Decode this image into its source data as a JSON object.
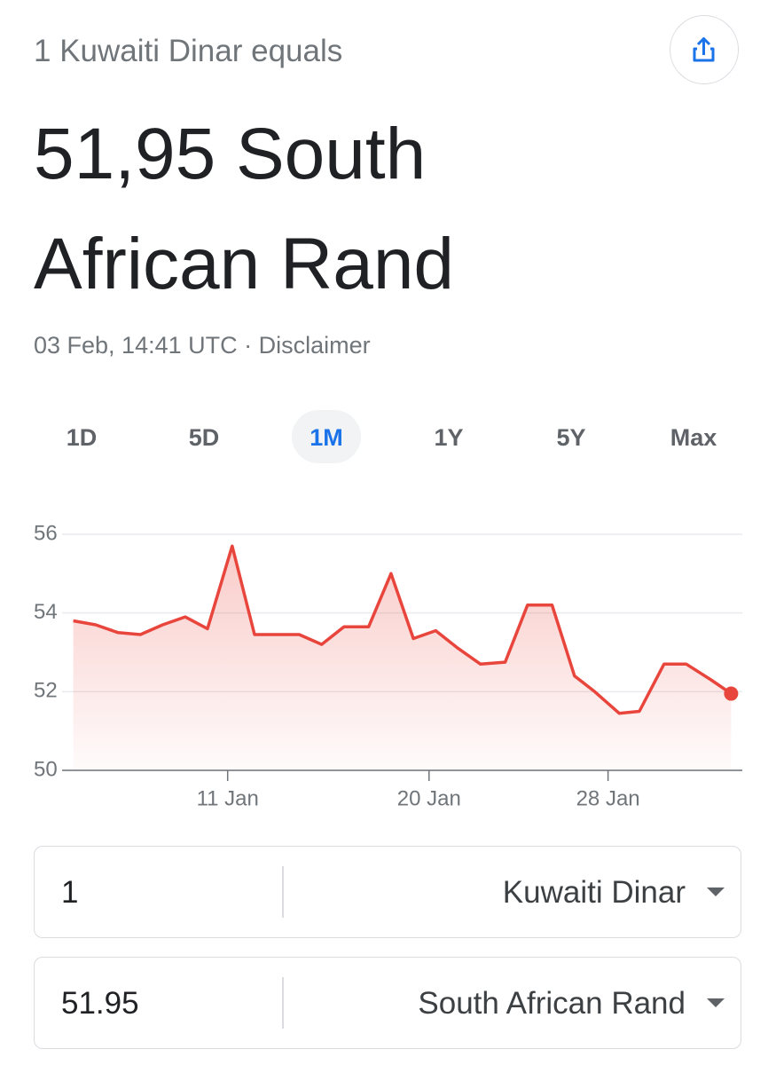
{
  "header": {
    "label": "1 Kuwaiti Dinar equals",
    "result": "51,95 South African Rand",
    "timestamp": "03 Feb, 14:41 UTC",
    "separator": "·",
    "disclaimer": "Disclaimer"
  },
  "tabs": {
    "items": [
      "1D",
      "5D",
      "1M",
      "1Y",
      "5Y",
      "Max"
    ],
    "selected": 2
  },
  "chart_data": {
    "type": "line",
    "x": [
      4.1,
      5.1,
      6.1,
      7.1,
      8.1,
      9.1,
      10.1,
      11.2,
      12.2,
      13.1,
      14.2,
      15.2,
      16.2,
      17.3,
      18.3,
      19.3,
      20.3,
      21.3,
      22.3,
      23.4,
      24.4,
      25.5,
      26.5,
      27.4,
      28.5,
      29.4,
      30.5,
      31.5,
      32.6,
      33.5
    ],
    "values": [
      53.8,
      53.7,
      53.5,
      53.45,
      53.7,
      53.9,
      53.6,
      55.7,
      53.45,
      53.45,
      53.45,
      53.2,
      53.65,
      53.65,
      55.0,
      53.35,
      53.55,
      53.1,
      52.7,
      52.75,
      54.2,
      54.2,
      52.4,
      52.0,
      51.45,
      51.5,
      52.7,
      52.7,
      52.3,
      51.95
    ],
    "color": "#e8453c",
    "area": true,
    "end_marker": true,
    "xlim": [
      3.6,
      34
    ],
    "xticks": [
      {
        "value": 11,
        "label": "11 Jan"
      },
      {
        "value": 20,
        "label": "20 Jan"
      },
      {
        "value": 28,
        "label": "28 Jan"
      }
    ],
    "ylim": [
      50,
      56
    ],
    "yticks": [
      50,
      52,
      54,
      56
    ],
    "grid": true
  },
  "converter": {
    "rows": [
      {
        "amount": "1",
        "currency": "Kuwaiti Dinar"
      },
      {
        "amount": "51.95",
        "currency": "South African Rand"
      }
    ]
  }
}
